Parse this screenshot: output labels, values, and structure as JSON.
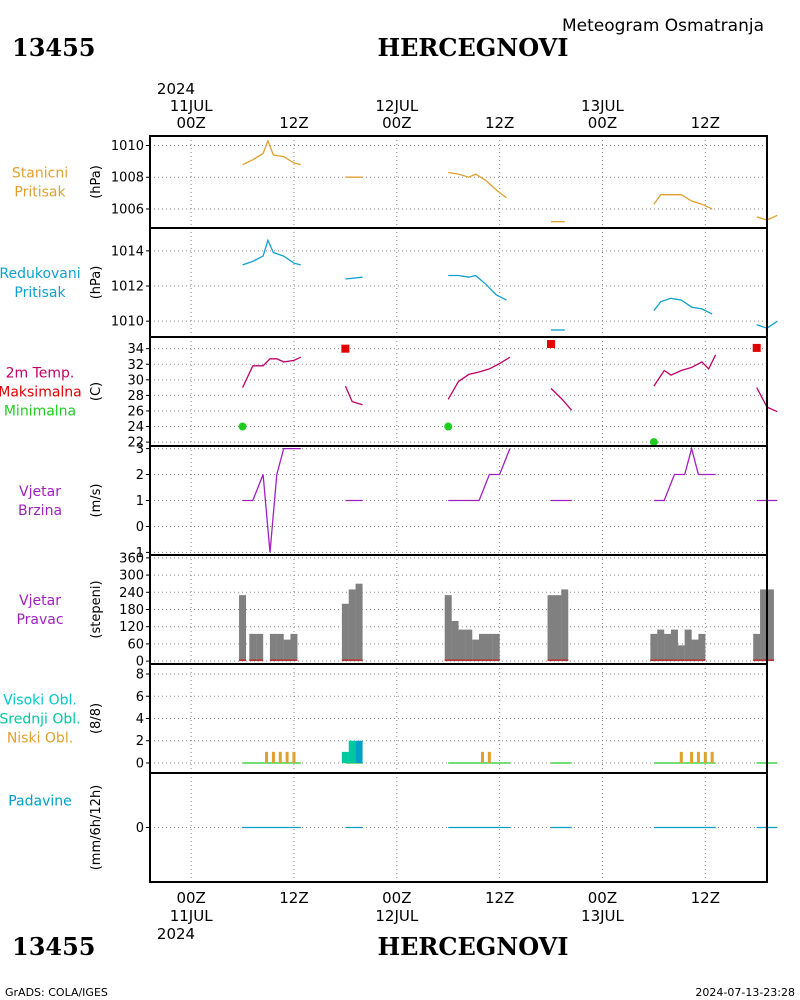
{
  "header": {
    "station_id": "13455",
    "station_name": "HERCEGNOVI",
    "subtitle": "Meteogram Osmatranja",
    "year": "2024"
  },
  "footer": {
    "credit": "GrADS: COLA/IGES",
    "timestamp": "2024-07-13-23:28"
  },
  "colors": {
    "orange": "#e0a030",
    "blue": "#10a0d0",
    "crimson": "#c00068",
    "red": "#e00000",
    "green": "#20cc20",
    "purple": "#a020c0",
    "gray": "#808080",
    "cyan": "#00c8c8",
    "teal": "#00a0c8",
    "tealgreen": "#00c8a0"
  },
  "chart_data": {
    "type": "line",
    "x_unit": "hours since 2024-07-11 00Z",
    "x_range": [
      -6,
      84
    ],
    "top_axis": [
      {
        "x": 0,
        "label": "00Z",
        "date": "11JUL"
      },
      {
        "x": 15,
        "label": "12Z"
      },
      {
        "x": 30,
        "label": "00Z",
        "date": "12JUL"
      },
      {
        "x": 45,
        "label": "12Z"
      },
      {
        "x": 60,
        "label": "00Z",
        "date": "13JUL"
      },
      {
        "x": 75,
        "label": "12Z"
      }
    ],
    "bottom_axis": [
      {
        "x": 0,
        "label": "00Z",
        "date": "11JUL"
      },
      {
        "x": 15,
        "label": "12Z"
      },
      {
        "x": 30,
        "label": "00Z",
        "date": "12JUL"
      },
      {
        "x": 45,
        "label": "12Z"
      },
      {
        "x": 60,
        "label": "00Z",
        "date": "13JUL"
      },
      {
        "x": 75,
        "label": "12Z"
      }
    ],
    "panels": [
      {
        "id": "station_pressure",
        "label_lines": [
          {
            "text": "Stanicni",
            "color": "orange"
          },
          {
            "text": "Pritisak",
            "color": "orange"
          }
        ],
        "unit": "(hPa)",
        "ylim": [
          1004.8,
          1010.6
        ],
        "yticks": [
          1006,
          1008,
          1010
        ],
        "series": [
          {
            "color": "orange",
            "points": [
              [
                7.5,
                1008.8
              ],
              [
                9,
                1009.1
              ],
              [
                10.5,
                1009.5
              ],
              [
                11.2,
                1010.3
              ],
              [
                12,
                1009.4
              ],
              [
                13.5,
                1009.3
              ],
              [
                15,
                1008.9
              ],
              [
                16,
                1008.8
              ]
            ]
          },
          {
            "color": "orange",
            "points": [
              [
                22.5,
                1008
              ],
              [
                25,
                1008
              ]
            ]
          },
          {
            "color": "orange",
            "points": [
              [
                37.5,
                1008.3
              ],
              [
                39,
                1008.2
              ],
              [
                40.5,
                1008
              ],
              [
                41.5,
                1008.2
              ],
              [
                43,
                1007.8
              ],
              [
                44.5,
                1007.2
              ],
              [
                46,
                1006.7
              ]
            ]
          },
          {
            "color": "orange",
            "points": [
              [
                52.5,
                1005.2
              ],
              [
                54.5,
                1005.2
              ]
            ]
          },
          {
            "color": "orange",
            "points": [
              [
                67.5,
                1006.3
              ],
              [
                68.5,
                1006.9
              ],
              [
                70,
                1006.9
              ],
              [
                71.5,
                1006.9
              ],
              [
                73,
                1006.5
              ],
              [
                74.5,
                1006.3
              ],
              [
                76,
                1006
              ]
            ]
          },
          {
            "color": "orange",
            "points": [
              [
                82.5,
                1005.5
              ],
              [
                84,
                1005.3
              ],
              [
                85.5,
                1005.6
              ]
            ]
          }
        ]
      },
      {
        "id": "reduced_pressure",
        "label_lines": [
          {
            "text": "Redukovani",
            "color": "blue"
          },
          {
            "text": "Pritisak",
            "color": "blue"
          }
        ],
        "unit": "(hPa)",
        "ylim": [
          1009.1,
          1015.3
        ],
        "yticks": [
          1010,
          1012,
          1014
        ],
        "series": [
          {
            "color": "blue",
            "points": [
              [
                7.5,
                1013.2
              ],
              [
                9,
                1013.4
              ],
              [
                10.5,
                1013.7
              ],
              [
                11.2,
                1014.6
              ],
              [
                12,
                1013.9
              ],
              [
                13.5,
                1013.7
              ],
              [
                15,
                1013.3
              ],
              [
                16,
                1013.2
              ]
            ]
          },
          {
            "color": "blue",
            "points": [
              [
                22.5,
                1012.4
              ],
              [
                25,
                1012.5
              ]
            ]
          },
          {
            "color": "blue",
            "points": [
              [
                37.5,
                1012.6
              ],
              [
                39,
                1012.6
              ],
              [
                40.5,
                1012.5
              ],
              [
                41.5,
                1012.6
              ],
              [
                43,
                1012.1
              ],
              [
                44.5,
                1011.5
              ],
              [
                46,
                1011.2
              ]
            ]
          },
          {
            "color": "blue",
            "points": [
              [
                52.5,
                1009.5
              ],
              [
                54.5,
                1009.5
              ]
            ]
          },
          {
            "color": "blue",
            "points": [
              [
                67.5,
                1010.6
              ],
              [
                68.5,
                1011.1
              ],
              [
                70,
                1011.3
              ],
              [
                71.5,
                1011.2
              ],
              [
                73,
                1010.8
              ],
              [
                74.5,
                1010.7
              ],
              [
                76,
                1010.4
              ]
            ]
          },
          {
            "color": "blue",
            "points": [
              [
                82.5,
                1009.8
              ],
              [
                84,
                1009.6
              ],
              [
                85.5,
                1010
              ]
            ]
          }
        ]
      },
      {
        "id": "temperature",
        "label_lines": [
          {
            "text": "2m Temp.",
            "color": "crimson"
          },
          {
            "text": "Maksimalna",
            "color": "red"
          },
          {
            "text": "Minimalna",
            "color": "green"
          }
        ],
        "unit": "(C)",
        "ylim": [
          21.5,
          35.5
        ],
        "yticks": [
          22,
          24,
          26,
          28,
          30,
          32,
          34
        ],
        "series": [
          {
            "color": "crimson",
            "points": [
              [
                7.5,
                29
              ],
              [
                9,
                31.8
              ],
              [
                10.5,
                31.8
              ],
              [
                11.5,
                32.7
              ],
              [
                12.5,
                32.7
              ],
              [
                13.5,
                32.3
              ],
              [
                15,
                32.5
              ],
              [
                16,
                32.9
              ]
            ]
          },
          {
            "color": "crimson",
            "points": [
              [
                22.5,
                29.2
              ],
              [
                23.5,
                27.2
              ],
              [
                25,
                26.8
              ]
            ]
          },
          {
            "color": "crimson",
            "points": [
              [
                37.5,
                27.5
              ],
              [
                39,
                29.8
              ],
              [
                40.5,
                30.7
              ],
              [
                42,
                31
              ],
              [
                43.5,
                31.4
              ],
              [
                45,
                32.1
              ],
              [
                46.5,
                32.9
              ]
            ]
          },
          {
            "color": "crimson",
            "points": [
              [
                52.5,
                28.9
              ],
              [
                54,
                27.6
              ],
              [
                55.5,
                26.1
              ]
            ]
          },
          {
            "color": "crimson",
            "points": [
              [
                67.5,
                29.2
              ],
              [
                69,
                31.2
              ],
              [
                70,
                30.6
              ],
              [
                71.5,
                31.2
              ],
              [
                73,
                31.6
              ],
              [
                74.5,
                32.3
              ],
              [
                75.5,
                31.4
              ],
              [
                76.5,
                33.2
              ]
            ]
          },
          {
            "color": "crimson",
            "points": [
              [
                82.5,
                29
              ],
              [
                84,
                26.5
              ],
              [
                85.5,
                25.9
              ]
            ]
          }
        ],
        "max_markers": [
          [
            22.5,
            34
          ],
          [
            52.5,
            34.6
          ],
          [
            82.5,
            34.1
          ]
        ],
        "min_markers": [
          [
            7.5,
            24
          ],
          [
            37.5,
            24
          ],
          [
            67.5,
            22
          ]
        ]
      },
      {
        "id": "wind_speed",
        "label_lines": [
          {
            "text": "Vjetar",
            "color": "purple"
          },
          {
            "text": "Brzina",
            "color": "purple"
          }
        ],
        "unit": "(m/s)",
        "ylim": [
          -1.1,
          3.1
        ],
        "yticks": [
          -1,
          0,
          1,
          2,
          3
        ],
        "series": [
          {
            "color": "purple",
            "points": [
              [
                7.5,
                1
              ],
              [
                9,
                1
              ],
              [
                10.5,
                2
              ],
              [
                11.5,
                -1
              ],
              [
                12.5,
                2
              ],
              [
                13.5,
                3
              ],
              [
                15,
                3
              ],
              [
                16,
                3
              ]
            ]
          },
          {
            "color": "purple",
            "points": [
              [
                22.5,
                1
              ],
              [
                25,
                1
              ]
            ]
          },
          {
            "color": "purple",
            "points": [
              [
                37.5,
                1
              ],
              [
                39,
                1
              ],
              [
                40.5,
                1
              ],
              [
                42,
                1
              ],
              [
                43.5,
                2
              ],
              [
                45,
                2
              ],
              [
                46.5,
                3
              ]
            ]
          },
          {
            "color": "purple",
            "points": [
              [
                52.5,
                1
              ],
              [
                55.5,
                1
              ]
            ]
          },
          {
            "color": "purple",
            "points": [
              [
                67.5,
                1
              ],
              [
                69,
                1
              ],
              [
                70.5,
                2
              ],
              [
                72,
                2
              ],
              [
                73,
                3
              ],
              [
                74,
                2
              ],
              [
                75.5,
                2
              ],
              [
                76.5,
                2
              ]
            ]
          },
          {
            "color": "purple",
            "points": [
              [
                82.5,
                1
              ],
              [
                85.5,
                1
              ]
            ]
          }
        ]
      },
      {
        "id": "wind_direction",
        "label_lines": [
          {
            "text": "Vjetar",
            "color": "purple"
          },
          {
            "text": "Pravac",
            "color": "purple"
          }
        ],
        "unit": "(stepeni)",
        "ylim": [
          -10,
          370
        ],
        "yticks": [
          0,
          60,
          120,
          180,
          240,
          300,
          360
        ],
        "bars": [
          [
            7.5,
            230
          ],
          [
            9,
            95
          ],
          [
            10,
            95
          ],
          [
            12,
            95
          ],
          [
            13,
            95
          ],
          [
            14,
            75
          ],
          [
            15,
            95
          ],
          [
            22.5,
            200
          ],
          [
            23.5,
            250
          ],
          [
            24.5,
            270
          ],
          [
            37.5,
            230
          ],
          [
            38.5,
            140
          ],
          [
            39.5,
            110
          ],
          [
            40.5,
            110
          ],
          [
            41.5,
            75
          ],
          [
            42.5,
            95
          ],
          [
            43.5,
            95
          ],
          [
            44.5,
            95
          ],
          [
            52.5,
            230
          ],
          [
            53.5,
            230
          ],
          [
            54.5,
            250
          ],
          [
            67.5,
            95
          ],
          [
            68.5,
            110
          ],
          [
            69.5,
            95
          ],
          [
            70.5,
            110
          ],
          [
            71.5,
            55
          ],
          [
            72.5,
            110
          ],
          [
            73.5,
            75
          ],
          [
            74.5,
            95
          ],
          [
            82.5,
            95
          ],
          [
            83.5,
            250
          ],
          [
            84.5,
            250
          ]
        ]
      },
      {
        "id": "clouds",
        "label_lines": [
          {
            "text": "Visoki Obl.",
            "color": "cyan"
          },
          {
            "text": "Srednji Obl.",
            "color": "tealgreen"
          },
          {
            "text": "Niski Obl.",
            "color": "orange"
          }
        ],
        "unit": "(8/8)",
        "ylim": [
          -0.9,
          8.9
        ],
        "yticks": [
          0,
          2,
          4,
          6,
          8
        ],
        "low_bars": [
          [
            11,
            1
          ],
          [
            12,
            1
          ],
          [
            13,
            1
          ],
          [
            14,
            1
          ],
          [
            15,
            1
          ],
          [
            42.5,
            1
          ],
          [
            43.5,
            1
          ],
          [
            71.5,
            1
          ],
          [
            73,
            1
          ],
          [
            74,
            1
          ],
          [
            75,
            1
          ],
          [
            76,
            1
          ]
        ],
        "mid_bars": [
          [
            22.5,
            1
          ],
          [
            23.5,
            2
          ]
        ],
        "high_bars": [
          [
            24.5,
            2
          ]
        ],
        "baseline_spans": [
          [
            7.5,
            16
          ],
          [
            22.5,
            25
          ],
          [
            37.5,
            46.5
          ],
          [
            52.5,
            55.5
          ],
          [
            67.5,
            76.5
          ],
          [
            82.5,
            85.5
          ]
        ]
      },
      {
        "id": "precipitation",
        "label_lines": [
          {
            "text": "Padavine",
            "color": "teal"
          }
        ],
        "unit": "(mm/6h/12h)",
        "ylim": [
          -5,
          5
        ],
        "yticks": [
          0
        ],
        "baseline_spans": [
          [
            7.5,
            16
          ],
          [
            22.5,
            25
          ],
          [
            37.5,
            46.5
          ],
          [
            52.5,
            55.5
          ],
          [
            67.5,
            76.5
          ],
          [
            82.5,
            85.5
          ]
        ]
      }
    ]
  }
}
